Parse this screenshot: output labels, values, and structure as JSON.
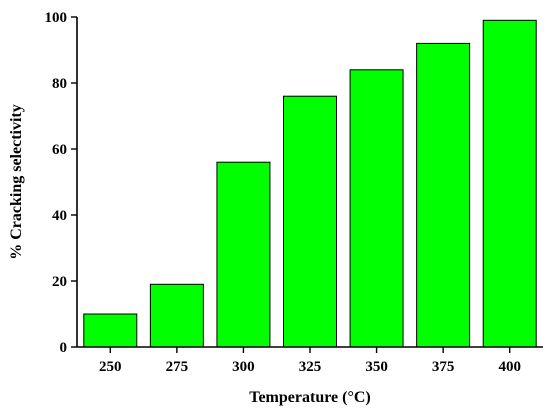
{
  "chart_data": {
    "type": "bar",
    "title": "",
    "xlabel": "Temperature (°C)",
    "ylabel": "% Cracking selectivity",
    "categories": [
      "250",
      "275",
      "300",
      "325",
      "350",
      "375",
      "400"
    ],
    "values": [
      10,
      19,
      56,
      76,
      84,
      92,
      99
    ],
    "ylim": [
      0,
      100
    ],
    "yticks": [
      "0",
      "20",
      "40",
      "60",
      "80",
      "100"
    ],
    "grid": false,
    "legend": "none",
    "bar_color": "#00ff00",
    "bar_edge_color": "#000000"
  }
}
